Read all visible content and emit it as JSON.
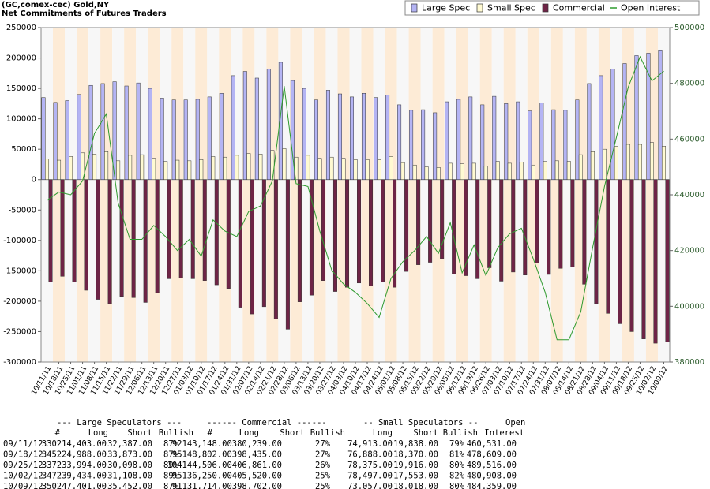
{
  "chart_data": {
    "type": "bar",
    "title": "(GC,comex-cec) Gold,NY",
    "subtitle": "Net Commitments of Futures Traders",
    "categories": [
      "10/11/11",
      "10/18/11",
      "10/25/11",
      "11/01/11",
      "11/08/11",
      "11/15/11",
      "11/22/11",
      "11/29/11",
      "12/06/11",
      "12/13/11",
      "12/20/11",
      "12/27/11",
      "01/03/12",
      "01/10/12",
      "01/17/12",
      "01/24/12",
      "01/31/12",
      "02/07/12",
      "02/14/12",
      "02/21/12",
      "02/28/12",
      "03/06/12",
      "03/13/12",
      "03/20/12",
      "03/27/12",
      "04/03/12",
      "04/10/12",
      "04/17/12",
      "04/24/12",
      "05/01/12",
      "05/08/12",
      "05/15/12",
      "05/22/12",
      "05/29/12",
      "06/05/12",
      "06/12/12",
      "06/19/12",
      "06/26/12",
      "07/03/12",
      "07/10/12",
      "07/17/12",
      "07/24/12",
      "07/31/12",
      "08/07/12",
      "08/14/12",
      "08/21/12",
      "08/28/12",
      "09/04/12",
      "09/11/12",
      "09/18/12",
      "09/25/12",
      "10/02/12",
      "10/09/12"
    ],
    "series": [
      {
        "name": "Large Spec",
        "color": "#b4b4f4",
        "values": [
          135000,
          127000,
          130000,
          140000,
          155000,
          158000,
          161000,
          154000,
          159000,
          150000,
          134000,
          131000,
          131000,
          132000,
          136000,
          142000,
          171000,
          178000,
          167000,
          182000,
          193000,
          163000,
          150000,
          131000,
          147000,
          141000,
          136000,
          142000,
          135000,
          139000,
          123000,
          114000,
          115000,
          110000,
          128000,
          132000,
          136000,
          123000,
          137000,
          125000,
          128000,
          113000,
          126000,
          115000,
          114000,
          131000,
          158000,
          171000,
          182000,
          191000,
          204000,
          208000,
          212000
        ]
      },
      {
        "name": "Small Spec",
        "color": "#fffad2",
        "values": [
          34000,
          32000,
          38000,
          44000,
          42000,
          46000,
          31000,
          40000,
          41000,
          35000,
          30000,
          32000,
          31000,
          33000,
          38000,
          37000,
          40000,
          43000,
          42000,
          48000,
          51000,
          37000,
          40000,
          35000,
          37000,
          35000,
          33000,
          33000,
          33000,
          38000,
          28000,
          24000,
          21000,
          20000,
          27000,
          26000,
          27000,
          22000,
          30000,
          27000,
          29000,
          24000,
          30000,
          31000,
          30000,
          41000,
          46000,
          50000,
          55000,
          58000,
          58000,
          61000,
          55000
        ]
      },
      {
        "name": "Commercial",
        "color": "#6e2446",
        "values": [
          -168000,
          -159000,
          -168000,
          -182000,
          -197000,
          -204000,
          -192000,
          -194000,
          -202000,
          -186000,
          -163000,
          -162000,
          -163000,
          -166000,
          -173000,
          -179000,
          -210000,
          -221000,
          -209000,
          -229000,
          -246000,
          -201000,
          -190000,
          -166000,
          -184000,
          -177000,
          -170000,
          -175000,
          -168000,
          -177000,
          -151000,
          -140000,
          -136000,
          -130000,
          -155000,
          -158000,
          -163000,
          -145000,
          -167000,
          -152000,
          -157000,
          -137000,
          -156000,
          -146000,
          -144000,
          -172000,
          -204000,
          -220000,
          -237000,
          -250000,
          -262000,
          -269000,
          -267000
        ]
      },
      {
        "name": "Open Interest",
        "color": "#2e9a2e",
        "type": "line",
        "axis": "y2",
        "values": [
          438000,
          441000,
          440000,
          445000,
          462000,
          469000,
          437000,
          424000,
          424000,
          429000,
          425000,
          420000,
          424000,
          418000,
          431000,
          427000,
          425000,
          434000,
          436000,
          445000,
          479000,
          444000,
          443000,
          427000,
          413000,
          408000,
          405000,
          401000,
          396000,
          410000,
          416000,
          420000,
          425000,
          419000,
          430000,
          412000,
          422000,
          411000,
          421000,
          426000,
          428000,
          417000,
          405000,
          388000,
          388000,
          398000,
          421000,
          443000,
          460531,
          478609,
          489516,
          480908,
          484359
        ]
      }
    ],
    "ylim": [
      -300000,
      250000
    ],
    "yticks": [
      -300000,
      -250000,
      -200000,
      -150000,
      -100000,
      -50000,
      0,
      50000,
      100000,
      150000,
      200000,
      250000
    ],
    "y2lim": [
      380000,
      500000
    ],
    "y2ticks": [
      380000,
      400000,
      420000,
      440000,
      460000,
      480000,
      500000
    ],
    "legend": "top-right",
    "band_colors": [
      "#f7f7f7",
      "#fdebd6"
    ]
  },
  "table": {
    "groups": [
      "--- Large Speculators ---",
      "------ Commercial ------",
      "-- Small Speculators --",
      "Open"
    ],
    "columns": [
      "#",
      "Long",
      "Short",
      "Bullish",
      "#",
      "Long",
      "Short",
      "Bullish",
      "Long",
      "Short",
      "Bullish",
      "Interest"
    ],
    "rows": [
      [
        "09/11/12",
        "330214,403.00",
        "32,387.00",
        "87%",
        "92143,148.00380,239.00",
        "27%",
        "74,913.00",
        "19,838.00",
        "79%",
        "460,531.00"
      ],
      [
        "09/18/12",
        "345224,988.00",
        "33,873.00",
        "87%",
        "95148,802.00398,435.00",
        "27%",
        "76,888.00",
        "18,370.00",
        "81%",
        "478,609.00"
      ],
      [
        "09/25/12",
        "337233,994.00",
        "30,098.00",
        "89%",
        "104144,506.00406,861.00",
        "26%",
        "78,375.00",
        "19,916.00",
        "80%",
        "489,516.00"
      ],
      [
        "10/02/12",
        "347239,434.00",
        "31,108.00",
        "89%",
        "95136,250.00405,520.00",
        "25%",
        "78,497.00",
        "17,553.00",
        "82%",
        "480,908.00"
      ],
      [
        "10/09/12",
        "350247,401.00",
        "35,452.00",
        "87%",
        "91131,714.00398,702.00",
        "25%",
        "73,057.00",
        "18,018.00",
        "80%",
        "484,359.00"
      ]
    ]
  }
}
